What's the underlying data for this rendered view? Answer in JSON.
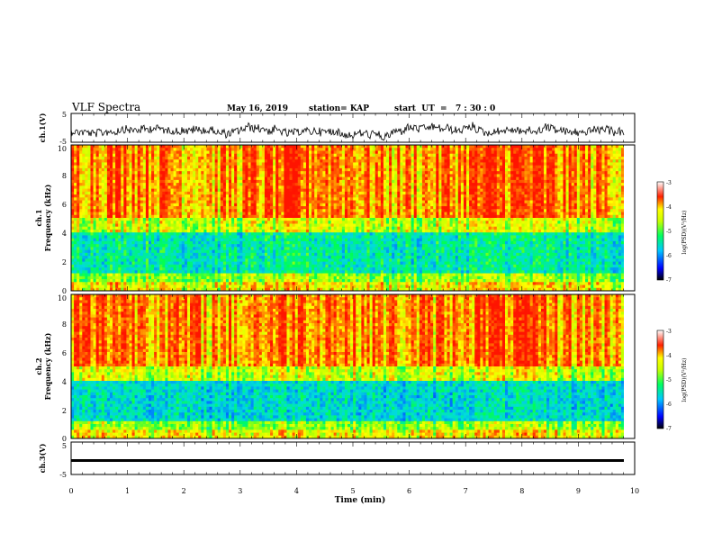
{
  "header": {
    "title": "VLF Spectra",
    "date": "May 16, 2019",
    "station": "station= KAP",
    "start_ut": "start  UT  =   7 : 30 : 0"
  },
  "chart_data": [
    {
      "type": "line",
      "panel": "ch1-waveform",
      "ylabel": "ch.1(V)",
      "ylim": [
        -5,
        5
      ],
      "yticks": [
        "5",
        "-5"
      ],
      "xlim": [
        0,
        10
      ]
    },
    {
      "type": "heatmap",
      "panel": "ch1-spectrogram",
      "ylabel": "ch.1\nFrequency (kHz)",
      "ylim": [
        0,
        10
      ],
      "yticks": [
        "0",
        "2",
        "4",
        "6",
        "8",
        "10"
      ],
      "xlim": [
        0,
        10
      ],
      "colorbar": {
        "label": "log(PSD)(V²/Hz)",
        "range": [
          -7,
          -3
        ],
        "ticks": [
          "-3",
          "-4",
          "-5",
          "-6",
          "-7"
        ]
      }
    },
    {
      "type": "heatmap",
      "panel": "ch2-spectrogram",
      "ylabel": "ch.2\nFrequency (kHz)",
      "ylim": [
        0,
        10
      ],
      "yticks": [
        "0",
        "2",
        "4",
        "6",
        "8",
        "10"
      ],
      "xlim": [
        0,
        10
      ],
      "colorbar": {
        "label": "log(PSD)(V²/Hz)",
        "range": [
          -7,
          -3
        ],
        "ticks": [
          "-3",
          "-4",
          "-5",
          "-6",
          "-7"
        ]
      }
    },
    {
      "type": "line",
      "panel": "ch3-waveform",
      "ylabel": "ch.3(V)",
      "ylim": [
        -5,
        5
      ],
      "yticks": [
        "5",
        "-5"
      ],
      "xlim": [
        0,
        10
      ],
      "xlabel": "Time (min)",
      "xticks": [
        "0",
        "1",
        "2",
        "3",
        "4",
        "5",
        "6",
        "7",
        "8",
        "9",
        "10"
      ]
    }
  ]
}
